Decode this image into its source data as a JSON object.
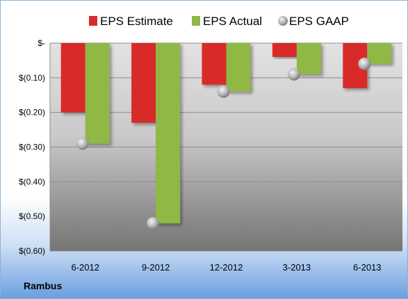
{
  "chart_data": {
    "type": "bar",
    "categories": [
      "6-2012",
      "9-2012",
      "12-2012",
      "3-2013",
      "6-2013"
    ],
    "series": [
      {
        "name": "EPS Estimate",
        "values": [
          -0.2,
          -0.23,
          -0.12,
          -0.04,
          -0.13
        ],
        "color": "#d92b2b"
      },
      {
        "name": "EPS Actual",
        "values": [
          -0.29,
          -0.52,
          -0.14,
          -0.09,
          -0.06
        ],
        "color": "#8fb845"
      },
      {
        "name": "EPS GAAP",
        "values": [
          -0.29,
          -0.52,
          -0.14,
          -0.09,
          -0.06
        ],
        "color": "#c8c8c8",
        "marker": "sphere"
      }
    ],
    "yticks": [
      0,
      -0.1,
      -0.2,
      -0.3,
      -0.4,
      -0.5,
      -0.6
    ],
    "ytick_labels": [
      "$-",
      "$(0.10)",
      "$(0.20)",
      "$(0.30)",
      "$(0.40)",
      "$(0.50)",
      "$(0.60)"
    ],
    "ylim": [
      -0.6,
      0
    ],
    "grid": true,
    "legend": "top"
  },
  "company": "Rambus"
}
